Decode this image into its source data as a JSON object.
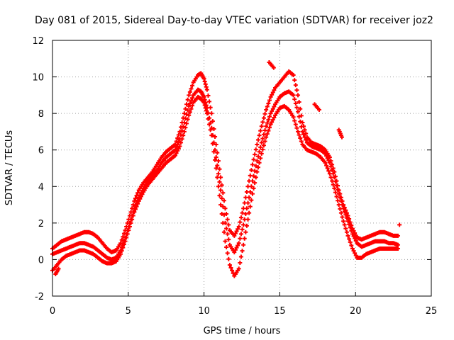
{
  "chart_data": {
    "type": "scatter",
    "title": "Day 081 of 2015, Sidereal Day-to-day VTEC variation (SDTVAR) for receiver joz2",
    "xlabel": "GPS time / hours",
    "ylabel": "SDTVAR / TECUs",
    "xlim": [
      0,
      25
    ],
    "ylim": [
      -2,
      12
    ],
    "xticks": [
      0,
      5,
      10,
      15,
      20,
      25
    ],
    "yticks": [
      -2,
      0,
      2,
      4,
      6,
      8,
      10,
      12
    ],
    "grid": true,
    "marker": "+",
    "color": "#ff0000",
    "series": [
      {
        "name": "track-upper",
        "x": [
          0.0,
          0.3,
          0.6,
          0.9,
          1.2,
          1.5,
          1.8,
          2.1,
          2.4,
          2.7,
          3.0,
          3.3,
          3.6,
          3.9,
          4.2,
          4.5,
          4.8,
          5.1,
          5.4,
          5.7,
          6.0,
          6.3,
          6.6,
          6.9,
          7.2,
          7.5,
          7.8,
          8.1,
          8.4,
          8.7,
          9.0,
          9.3,
          9.6,
          9.8,
          10.0,
          10.2,
          10.5,
          10.8,
          11.1,
          11.4,
          11.7,
          12.0,
          12.3,
          12.6,
          12.9,
          13.2,
          13.5,
          13.8,
          14.1,
          14.4,
          14.7,
          15.0,
          15.3,
          15.6,
          15.9,
          16.2,
          16.5,
          16.8,
          17.1,
          17.4,
          17.7,
          18.0,
          18.3,
          18.6,
          18.9,
          19.2,
          19.5,
          19.8,
          20.1,
          20.4,
          20.7,
          21.0,
          21.3,
          21.6,
          21.9,
          22.2,
          22.5,
          22.8
        ],
        "y": [
          0.6,
          0.8,
          1.0,
          1.1,
          1.2,
          1.3,
          1.4,
          1.5,
          1.5,
          1.4,
          1.2,
          0.9,
          0.6,
          0.4,
          0.5,
          0.9,
          1.6,
          2.4,
          3.2,
          3.8,
          4.2,
          4.5,
          4.8,
          5.2,
          5.6,
          5.9,
          6.1,
          6.3,
          7.0,
          8.0,
          9.0,
          9.7,
          10.1,
          10.2,
          9.9,
          9.3,
          8.0,
          6.3,
          4.5,
          2.8,
          1.6,
          1.3,
          1.8,
          2.8,
          4.0,
          5.2,
          6.3,
          7.3,
          8.2,
          8.9,
          9.4,
          9.7,
          10.0,
          10.3,
          10.1,
          9.0,
          7.5,
          6.7,
          6.4,
          6.3,
          6.2,
          6.0,
          5.6,
          4.8,
          3.8,
          3.0,
          2.4,
          1.7,
          1.2,
          1.1,
          1.2,
          1.3,
          1.4,
          1.5,
          1.5,
          1.4,
          1.3,
          1.3
        ]
      },
      {
        "name": "track-middle",
        "x": [
          0.0,
          0.3,
          0.6,
          0.9,
          1.2,
          1.5,
          1.8,
          2.1,
          2.4,
          2.7,
          3.0,
          3.3,
          3.6,
          3.9,
          4.2,
          4.5,
          4.8,
          5.1,
          5.4,
          5.7,
          6.0,
          6.3,
          6.6,
          6.9,
          7.2,
          7.5,
          7.8,
          8.1,
          8.4,
          8.7,
          9.0,
          9.3,
          9.6,
          9.8,
          10.0,
          10.2,
          10.5,
          10.8,
          11.1,
          11.4,
          11.7,
          12.0,
          12.3,
          12.6,
          12.9,
          13.2,
          13.5,
          13.8,
          14.1,
          14.4,
          14.7,
          15.0,
          15.3,
          15.6,
          15.9,
          16.2,
          16.5,
          16.8,
          17.1,
          17.4,
          17.7,
          18.0,
          18.3,
          18.6,
          18.9,
          19.2,
          19.5,
          19.8,
          20.1,
          20.4,
          20.7,
          21.0,
          21.3,
          21.6,
          21.9,
          22.2,
          22.5,
          22.8
        ],
        "y": [
          0.3,
          0.4,
          0.5,
          0.6,
          0.7,
          0.8,
          0.9,
          0.9,
          0.8,
          0.7,
          0.5,
          0.3,
          0.1,
          0.0,
          0.1,
          0.5,
          1.2,
          2.0,
          2.8,
          3.4,
          3.9,
          4.3,
          4.6,
          4.9,
          5.3,
          5.6,
          5.8,
          6.0,
          6.6,
          7.5,
          8.4,
          9.0,
          9.3,
          9.2,
          8.9,
          8.3,
          7.2,
          5.6,
          3.8,
          2.0,
          0.8,
          0.4,
          0.9,
          1.9,
          3.1,
          4.3,
          5.4,
          6.4,
          7.3,
          8.0,
          8.5,
          8.9,
          9.1,
          9.2,
          9.0,
          8.1,
          7.0,
          6.4,
          6.2,
          6.1,
          6.0,
          5.8,
          5.3,
          4.5,
          3.6,
          2.8,
          2.1,
          1.4,
          0.9,
          0.7,
          0.8,
          0.9,
          1.0,
          1.0,
          1.0,
          0.9,
          0.9,
          0.8
        ]
      },
      {
        "name": "track-lower",
        "x": [
          0.0,
          0.3,
          0.6,
          0.9,
          1.2,
          1.5,
          1.8,
          2.1,
          2.4,
          2.7,
          3.0,
          3.3,
          3.6,
          3.9,
          4.2,
          4.5,
          4.8,
          5.1,
          5.4,
          5.7,
          6.0,
          6.3,
          6.6,
          6.9,
          7.2,
          7.5,
          7.8,
          8.1,
          8.4,
          8.7,
          9.0,
          9.3,
          9.6,
          9.8,
          10.0,
          10.2,
          10.5,
          10.8,
          11.1,
          11.4,
          11.7,
          12.0,
          12.3,
          12.6,
          12.9,
          13.2,
          13.5,
          13.8,
          14.1,
          14.4,
          14.7,
          15.0,
          15.3,
          15.6,
          15.9,
          16.2,
          16.5,
          16.8,
          17.1,
          17.4,
          17.7,
          18.0,
          18.3,
          18.6,
          18.9,
          19.2,
          19.5,
          19.8,
          20.1,
          20.4,
          20.7,
          21.0,
          21.3,
          21.6,
          21.9,
          22.2,
          22.5,
          22.8
        ],
        "y": [
          -0.6,
          -0.3,
          0.0,
          0.2,
          0.3,
          0.4,
          0.5,
          0.5,
          0.4,
          0.3,
          0.1,
          -0.1,
          -0.2,
          -0.2,
          -0.1,
          0.3,
          1.0,
          1.8,
          2.6,
          3.2,
          3.7,
          4.1,
          4.4,
          4.7,
          5.0,
          5.3,
          5.5,
          5.7,
          6.2,
          7.0,
          7.9,
          8.6,
          8.9,
          8.8,
          8.6,
          8.0,
          6.8,
          5.0,
          3.0,
          1.0,
          -0.3,
          -0.9,
          -0.5,
          0.8,
          2.2,
          3.6,
          4.8,
          5.8,
          6.7,
          7.4,
          7.9,
          8.3,
          8.4,
          8.2,
          7.8,
          7.0,
          6.3,
          6.0,
          5.9,
          5.8,
          5.6,
          5.3,
          4.7,
          3.9,
          3.0,
          2.1,
          1.3,
          0.6,
          0.1,
          0.1,
          0.3,
          0.4,
          0.5,
          0.6,
          0.6,
          0.6,
          0.6,
          0.6
        ]
      },
      {
        "name": "outliers",
        "x": [
          0.2,
          0.4,
          14.3,
          14.6,
          17.3,
          17.6,
          18.9,
          19.1,
          22.9
        ],
        "y": [
          -0.8,
          -0.5,
          10.8,
          10.5,
          8.5,
          8.2,
          7.1,
          6.7,
          1.9
        ]
      }
    ]
  }
}
